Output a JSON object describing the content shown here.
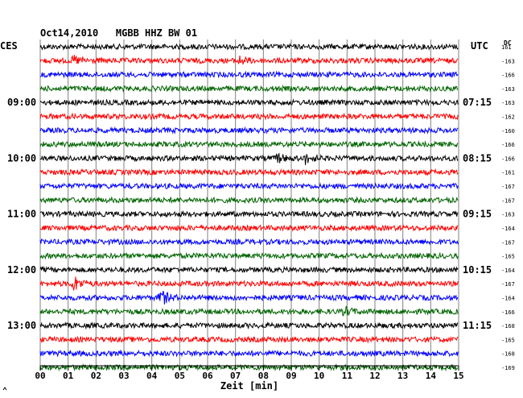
{
  "chart_data": {
    "type": "line",
    "title": "Oct14,2010   MGBB HHZ BW 01",
    "left_timezone": "CES",
    "right_timezone": "UTC",
    "dc_label": "DC",
    "xlabel": "Zeit [min]",
    "x_ticks": [
      "00",
      "01",
      "02",
      "03",
      "04",
      "05",
      "06",
      "07",
      "08",
      "09",
      "10",
      "11",
      "12",
      "13",
      "14",
      "15"
    ],
    "xlim": [
      0,
      15
    ],
    "grid": true,
    "row_colors": [
      "#000000",
      "#ff0000",
      "#0000ff",
      "#006400"
    ],
    "rows": [
      {
        "dc": "161"
      },
      {
        "dc": "-163"
      },
      {
        "dc": "-166"
      },
      {
        "dc": "-163"
      },
      {
        "dc": "-163"
      },
      {
        "dc": "-162"
      },
      {
        "dc": "-160"
      },
      {
        "dc": "-166"
      },
      {
        "dc": "-166"
      },
      {
        "dc": "-161"
      },
      {
        "dc": "-167"
      },
      {
        "dc": "-167"
      },
      {
        "dc": "-163"
      },
      {
        "dc": "-164"
      },
      {
        "dc": "-167"
      },
      {
        "dc": "-165"
      },
      {
        "dc": "-164"
      },
      {
        "dc": "-167"
      },
      {
        "dc": "-164"
      },
      {
        "dc": "-166"
      },
      {
        "dc": "-168"
      },
      {
        "dc": "-165"
      },
      {
        "dc": "-168"
      },
      {
        "dc": "-169"
      }
    ],
    "left_time_labels": [
      {
        "row": 4,
        "text": "09:00"
      },
      {
        "row": 8,
        "text": "10:00"
      },
      {
        "row": 12,
        "text": "11:00"
      },
      {
        "row": 16,
        "text": "12:00"
      },
      {
        "row": 20,
        "text": "13:00"
      }
    ],
    "right_time_labels": [
      {
        "row": 4,
        "text": "07:15"
      },
      {
        "row": 8,
        "text": "08:15"
      },
      {
        "row": 12,
        "text": "09:15"
      },
      {
        "row": 16,
        "text": "10:15"
      },
      {
        "row": 20,
        "text": "11:15"
      }
    ],
    "events": [
      {
        "row": 1,
        "minute": 1.2,
        "amplitude": 0.5
      },
      {
        "row": 1,
        "minute": 7.1,
        "amplitude": 0.5
      },
      {
        "row": 8,
        "minute": 8.5,
        "amplitude": 0.5
      },
      {
        "row": 8,
        "minute": 9.5,
        "amplitude": 0.55
      },
      {
        "row": 17,
        "minute": 1.2,
        "amplitude": 0.9
      },
      {
        "row": 18,
        "minute": 4.3,
        "amplitude": 1.0
      },
      {
        "row": 19,
        "minute": 10.9,
        "amplitude": 0.5
      }
    ]
  }
}
